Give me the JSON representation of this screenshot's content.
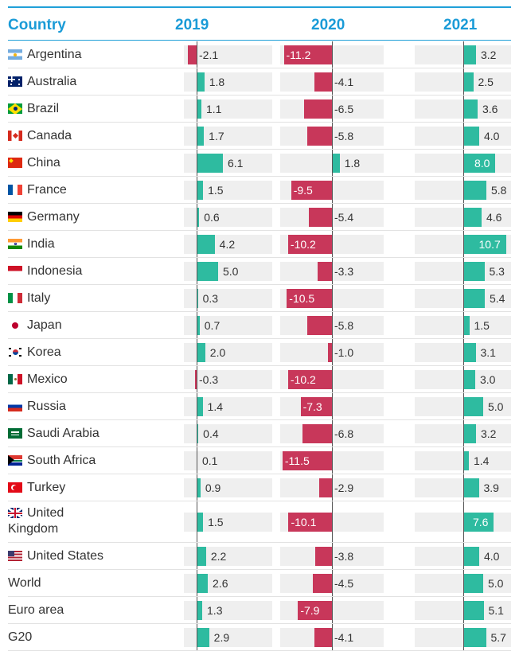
{
  "header": {
    "country": "Country",
    "years": [
      "2019",
      "2020",
      "2021"
    ]
  },
  "colors": {
    "positive": "#2ebba0",
    "negative": "#c8375a",
    "header": "#1a9bd7"
  },
  "chart_data": {
    "type": "bar",
    "title": "",
    "series": [
      {
        "name": "2019",
        "values": [
          -2.1,
          1.8,
          1.1,
          1.7,
          6.1,
          1.5,
          0.6,
          4.2,
          5.0,
          0.3,
          0.7,
          2.0,
          -0.3,
          1.4,
          0.4,
          0.1,
          0.9,
          1.5,
          2.2,
          2.6,
          1.3,
          2.9
        ]
      },
      {
        "name": "2020",
        "values": [
          -11.2,
          -4.1,
          -6.5,
          -5.8,
          1.8,
          -9.5,
          -5.4,
          -10.2,
          -3.3,
          -10.5,
          -5.8,
          -1.0,
          -10.2,
          -7.3,
          -6.8,
          -11.5,
          -2.9,
          -10.1,
          -3.8,
          -4.5,
          -7.9,
          -4.1
        ]
      },
      {
        "name": "2021",
        "values": [
          3.2,
          2.5,
          3.6,
          4.0,
          8.0,
          5.8,
          4.6,
          10.7,
          5.3,
          5.4,
          1.5,
          3.1,
          3.0,
          5.0,
          3.2,
          1.4,
          3.9,
          7.6,
          4.0,
          5.0,
          5.1,
          5.7
        ]
      }
    ],
    "value_labels": {
      "2019": [
        "-2.1",
        "1.8",
        "1.1",
        "1.7",
        "6.1",
        "1.5",
        "0.6",
        "4.2",
        "5.0",
        "0.3",
        "0.7",
        "2.0",
        "-0.3",
        "1.4",
        "0.4",
        "0.1",
        "0.9",
        "1.5",
        "2.2",
        "2.6",
        "1.3",
        "2.9"
      ],
      "2020": [
        "-11.2",
        "-4.1",
        "-6.5",
        "-5.8",
        "1.8",
        "-9.5",
        "-5.4",
        "-10.2",
        "-3.3",
        "-10.5",
        "-5.8",
        "-1.0",
        "-10.2",
        "-7.3",
        "-6.8",
        "-11.5",
        "-2.9",
        "-10.1",
        "-3.8",
        "-4.5",
        "-7.9",
        "-4.1"
      ],
      "2021": [
        "3.2",
        "2.5",
        "3.6",
        "4.0",
        "8.0",
        "5.8",
        "4.6",
        "10.7",
        "5.3",
        "5.4",
        "1.5",
        "3.1",
        "3.0",
        "5.0",
        "3.2",
        "1.4",
        "3.9",
        "7.6",
        "4.0",
        "5.0",
        "5.1",
        "5.7"
      ]
    }
  },
  "rows": [
    {
      "label": "Argentina",
      "flag": "argentina-flag"
    },
    {
      "label": "Australia",
      "flag": "australia-flag"
    },
    {
      "label": "Brazil",
      "flag": "brazil-flag"
    },
    {
      "label": "Canada",
      "flag": "canada-flag"
    },
    {
      "label": "China",
      "flag": "china-flag"
    },
    {
      "label": "France",
      "flag": "france-flag"
    },
    {
      "label": "Germany",
      "flag": "germany-flag"
    },
    {
      "label": "India",
      "flag": "india-flag"
    },
    {
      "label": "Indonesia",
      "flag": "indonesia-flag"
    },
    {
      "label": "Italy",
      "flag": "italy-flag"
    },
    {
      "label": "Japan",
      "flag": "japan-flag"
    },
    {
      "label": "Korea",
      "flag": "korea-flag"
    },
    {
      "label": "Mexico",
      "flag": "mexico-flag"
    },
    {
      "label": "Russia",
      "flag": "russia-flag"
    },
    {
      "label": "Saudi Arabia",
      "flag": "saudi-arabia-flag"
    },
    {
      "label": "South Africa",
      "flag": "south-africa-flag"
    },
    {
      "label": "Turkey",
      "flag": "turkey-flag"
    },
    {
      "label": "United Kingdom",
      "flag": "united-kingdom-flag"
    },
    {
      "label": "United States",
      "flag": "united-states-flag"
    },
    {
      "label": "World",
      "flag": ""
    },
    {
      "label": "Euro area",
      "flag": ""
    },
    {
      "label": "G20",
      "flag": ""
    }
  ]
}
